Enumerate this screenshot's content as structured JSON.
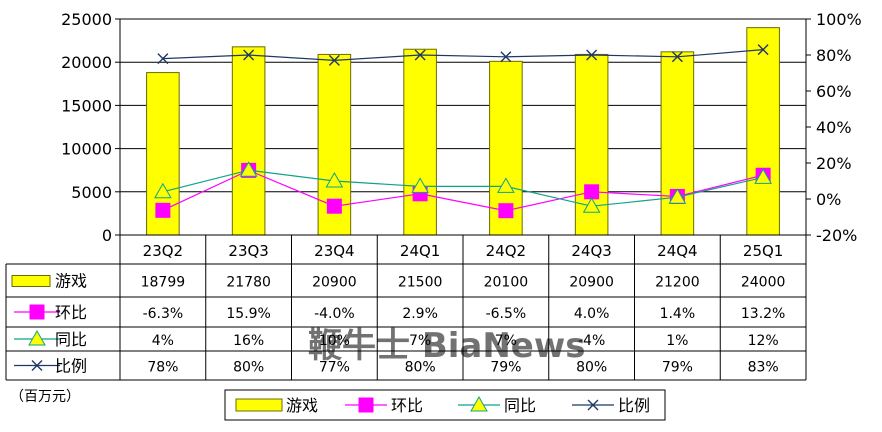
{
  "colors": {
    "bar": "#ffff00",
    "bar_stroke": "#6b6b00",
    "huanbi": "#ff00ff",
    "tongbi": "#0fa38a",
    "tongbi_marker": "#ffff00",
    "bili": "#1f3864",
    "axis": "#000000"
  },
  "unit_note": "（百万元）",
  "watermark": "鞭牛士 BiaNews",
  "legend": {
    "items": [
      {
        "label": "游戏",
        "key": "bar"
      },
      {
        "label": "环比",
        "key": "huanbi"
      },
      {
        "label": "同比",
        "key": "tongbi"
      },
      {
        "label": "比例",
        "key": "bili"
      }
    ]
  },
  "chart_data": {
    "type": "bar",
    "title": "",
    "categories": [
      "23Q2",
      "23Q3",
      "23Q4",
      "24Q1",
      "24Q2",
      "24Q3",
      "24Q4",
      "25Q1"
    ],
    "y_left": {
      "min": 0,
      "max": 25000,
      "ticks": [
        "0",
        "5000",
        "10000",
        "15000",
        "20000",
        "25000"
      ]
    },
    "y_right": {
      "min": -20,
      "max": 100,
      "ticks": [
        "-20%",
        "0%",
        "20%",
        "40%",
        "60%",
        "80%",
        "100%"
      ]
    },
    "grid": true,
    "legend_position": "bottom",
    "series": [
      {
        "name": "游戏",
        "type": "bar",
        "axis": "left",
        "values": [
          18799,
          21780,
          20900,
          21500,
          20100,
          20900,
          21200,
          24000
        ],
        "labels": [
          "18799",
          "21780",
          "20900",
          "21500",
          "20100",
          "20900",
          "21200",
          "24000"
        ]
      },
      {
        "name": "环比",
        "type": "line",
        "axis": "right",
        "marker": "square",
        "values": [
          -6.3,
          15.9,
          -4.0,
          2.9,
          -6.5,
          4.0,
          1.4,
          13.2
        ],
        "labels": [
          "-6.3%",
          "15.9%",
          "-4.0%",
          "2.9%",
          "-6.5%",
          "4.0%",
          "1.4%",
          "13.2%"
        ]
      },
      {
        "name": "同比",
        "type": "line",
        "axis": "right",
        "marker": "triangle",
        "values": [
          4,
          16,
          10,
          7,
          7,
          -4,
          1,
          12
        ],
        "labels": [
          "4%",
          "16%",
          "10%",
          "7%",
          "7%",
          "-4%",
          "1%",
          "12%"
        ]
      },
      {
        "name": "比例",
        "type": "line",
        "axis": "right",
        "marker": "x",
        "values": [
          78,
          80,
          77,
          80,
          79,
          80,
          79,
          83
        ],
        "labels": [
          "78%",
          "80%",
          "77%",
          "80%",
          "79%",
          "80%",
          "79%",
          "83%"
        ]
      }
    ]
  }
}
